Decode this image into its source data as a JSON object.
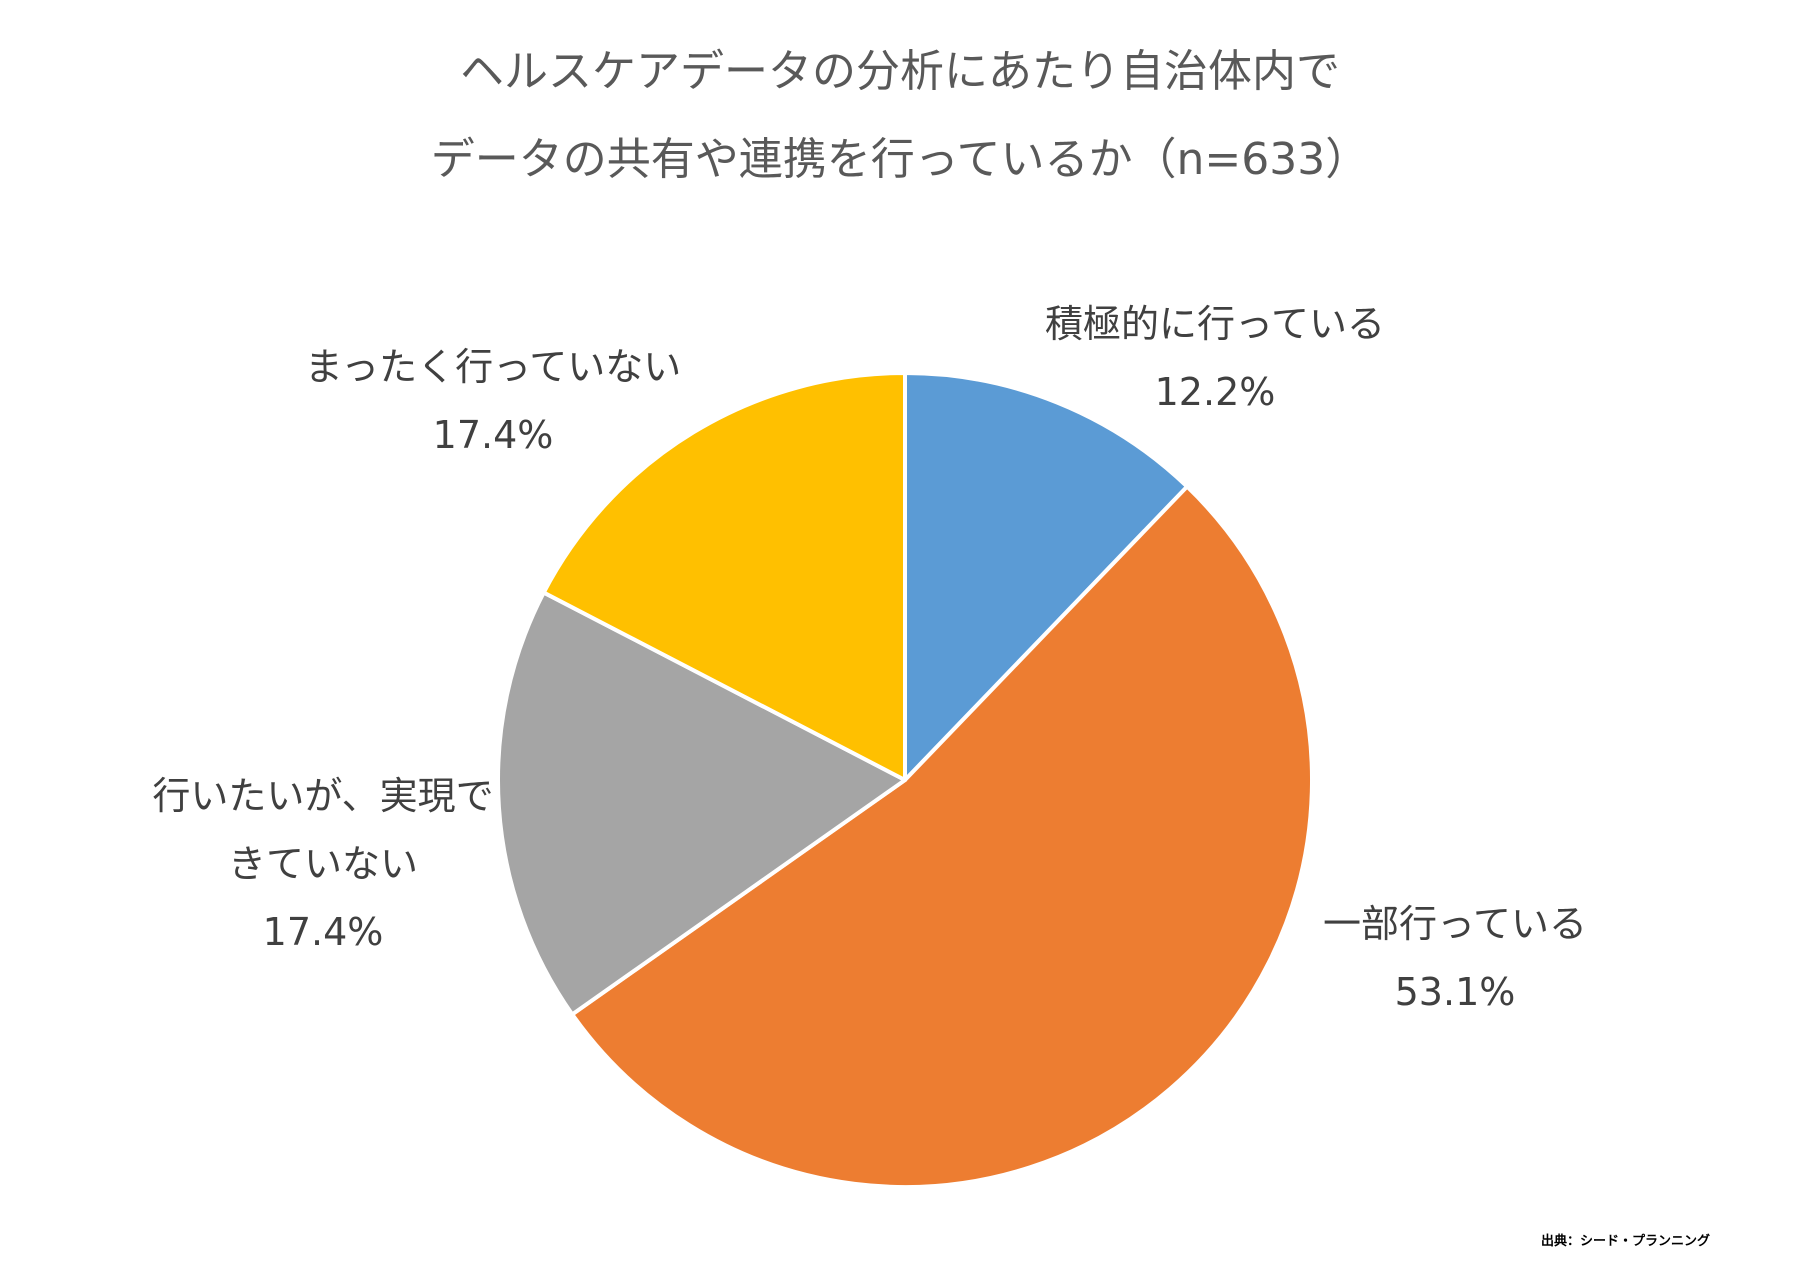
{
  "chart_data": {
    "type": "pie",
    "title_lines": [
      "ヘルスケアデータの分析にあたり自治体内で",
      "データの共有や連携を行っているか（n=633）"
    ],
    "start_angle_deg": 0,
    "direction": "clockwise",
    "slices": [
      {
        "label_lines": [
          "積極的に行っている"
        ],
        "value": 12.2,
        "value_label": "12.2%",
        "color": "#5B9BD5"
      },
      {
        "label_lines": [
          "一部行っている"
        ],
        "value": 53.1,
        "value_label": "53.1%",
        "color": "#ED7D31"
      },
      {
        "label_lines": [
          "行いたいが、実現で",
          "きていない"
        ],
        "value": 17.4,
        "value_label": "17.4%",
        "color": "#A5A5A5"
      },
      {
        "label_lines": [
          "まったく行っていない"
        ],
        "value": 17.4,
        "value_label": "17.4%",
        "color": "#FFC000"
      }
    ],
    "slice_border_color": "#FFFFFF",
    "legend": "none"
  },
  "source_note": "出典：シード・プランニング"
}
